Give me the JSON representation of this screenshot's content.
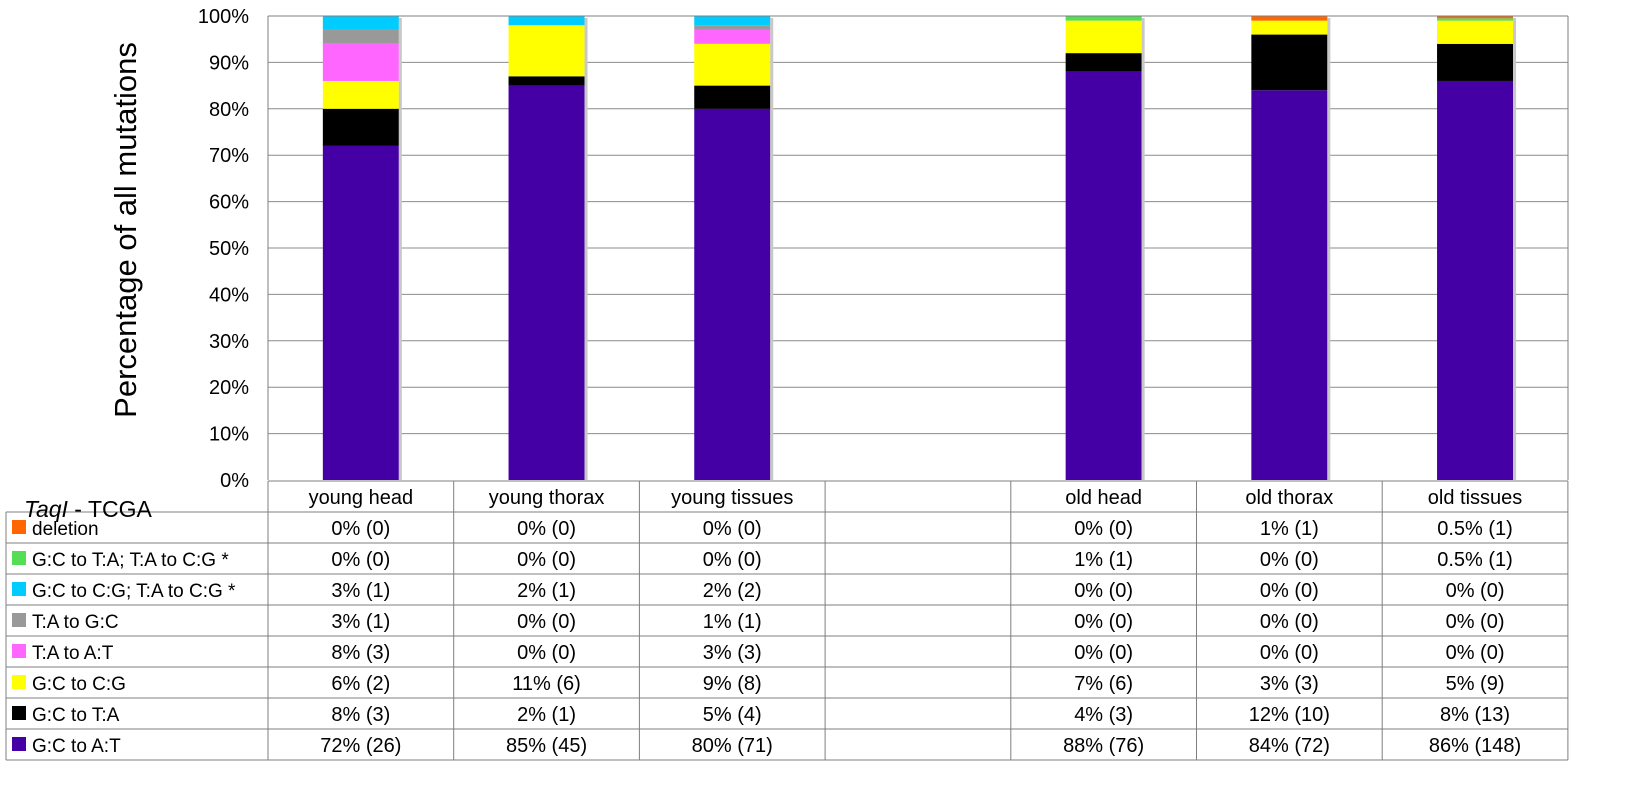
{
  "chart_data": {
    "type": "bar",
    "stacked": true,
    "corner_label": {
      "italic": "TaqI",
      "rest": " - TCGA"
    },
    "ylabel": "Percentage of all mutations",
    "ylim": [
      0,
      100
    ],
    "yticks": [
      "0%",
      "10%",
      "20%",
      "30%",
      "40%",
      "50%",
      "60%",
      "70%",
      "80%",
      "90%",
      "100%"
    ],
    "grid": true,
    "categories": [
      "young head",
      "young thorax",
      "young tissues",
      "",
      "old head",
      "old thorax",
      "old tissues"
    ],
    "series": [
      {
        "name": "G:C to A:T",
        "color": "#4400A5",
        "values": [
          72,
          85,
          80,
          null,
          88,
          84,
          86
        ],
        "labels": [
          "72% (26)",
          "85% (45)",
          "80% (71)",
          "",
          "88% (76)",
          "84% (72)",
          "86% (148)"
        ]
      },
      {
        "name": "G:C to T:A",
        "color": "#000000",
        "values": [
          8,
          2,
          5,
          null,
          4,
          12,
          8
        ],
        "labels": [
          "8% (3)",
          "2% (1)",
          "5% (4)",
          "",
          "4% (3)",
          "12% (10)",
          "8% (13)"
        ]
      },
      {
        "name": "G:C to C:G",
        "color": "#FFFF00",
        "values": [
          6,
          11,
          9,
          null,
          7,
          3,
          5
        ],
        "labels": [
          "6% (2)",
          "11% (6)",
          "9% (8)",
          "",
          "7% (6)",
          "3% (3)",
          "5% (9)"
        ]
      },
      {
        "name": "T:A to A:T",
        "color": "#FF66FF",
        "values": [
          8,
          0,
          3,
          null,
          0,
          0,
          0
        ],
        "labels": [
          "8% (3)",
          "0% (0)",
          "3% (3)",
          "",
          "0% (0)",
          "0% (0)",
          "0% (0)"
        ]
      },
      {
        "name": "T:A to G:C",
        "color": "#999999",
        "values": [
          3,
          0,
          1,
          null,
          0,
          0,
          0
        ],
        "labels": [
          "3% (1)",
          "0% (0)",
          "1% (1)",
          "",
          "0% (0)",
          "0% (0)",
          "0% (0)"
        ]
      },
      {
        "name": "G:C to C:G; T:A to C:G *",
        "color": "#00CCFF",
        "values": [
          3,
          2,
          2,
          null,
          0,
          0,
          0
        ],
        "labels": [
          "3% (1)",
          "2% (1)",
          "2% (2)",
          "",
          "0% (0)",
          "0% (0)",
          "0% (0)"
        ]
      },
      {
        "name": "G:C to T:A; T:A to C:G *",
        "color": "#55DD55",
        "values": [
          0,
          0,
          0,
          null,
          1,
          0,
          0.5
        ],
        "labels": [
          "0% (0)",
          "0% (0)",
          "0% (0)",
          "",
          "1% (1)",
          "0% (0)",
          "0.5% (1)"
        ]
      },
      {
        "name": "deletion",
        "color": "#FF6600",
        "values": [
          0,
          0,
          0,
          null,
          0,
          1,
          0.5
        ],
        "labels": [
          "0% (0)",
          "0% (0)",
          "0% (0)",
          "",
          "0% (0)",
          "1% (1)",
          "0.5% (1)"
        ]
      }
    ],
    "table_row_order": [
      "deletion",
      "G:C to T:A; T:A to C:G *",
      "G:C to C:G; T:A to C:G *",
      "T:A to G:C",
      "T:A to A:T",
      "G:C to C:G",
      "G:C to T:A",
      "G:C to A:T"
    ]
  }
}
